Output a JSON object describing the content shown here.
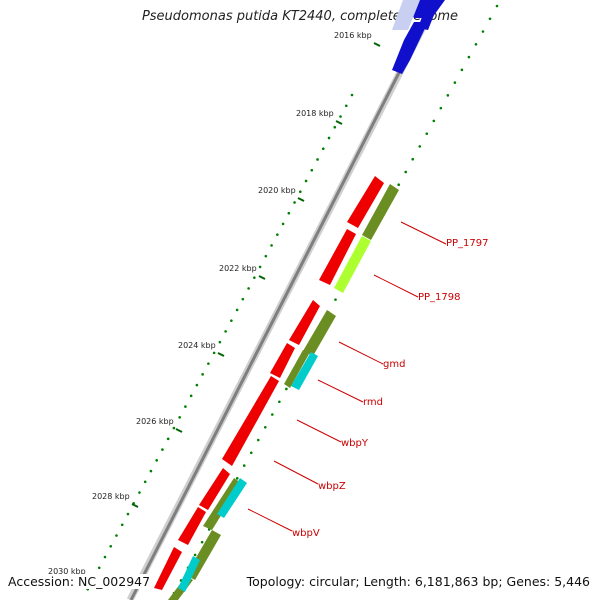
{
  "map": {
    "title": "Pseudomonas putida KT2440, complete genome",
    "footer": {
      "accession": "Accession: NC_002947",
      "summary": "Topology: circular; Length: 6,181,863 bp; Genes: 5,446"
    },
    "scale_labels": [
      "2016 kbp",
      "2018 kbp",
      "2020 kbp",
      "2022 kbp",
      "2024 kbp",
      "2026 kbp",
      "2028 kbp",
      "2030 kbp"
    ],
    "gene_labels": [
      "PP_1797",
      "PP_1798",
      "gmd",
      "rmd",
      "wbpY",
      "wbpZ",
      "wbpV"
    ],
    "colors": {
      "backbone": "#7f7f7f",
      "forward_gene": "#ff0000",
      "reverse_gene_track": "#0000cc",
      "feature_olive": "#6b8e23",
      "feature_lime": "#adff2f",
      "feature_cyan": "#00cccc",
      "gc_dots": "#008000",
      "label_red": "#cc0000"
    }
  }
}
